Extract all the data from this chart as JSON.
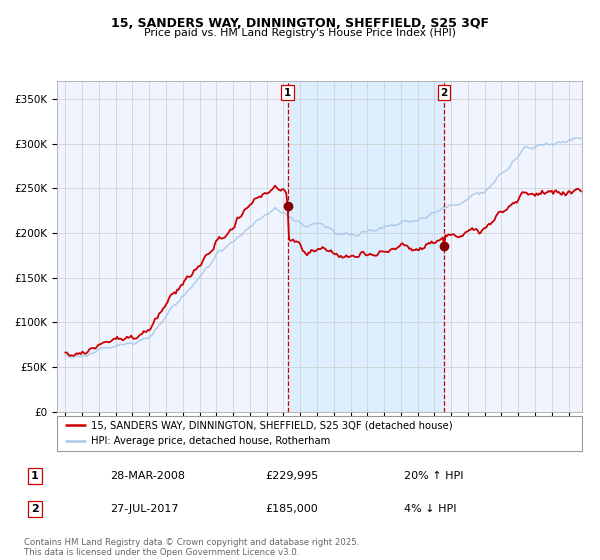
{
  "title1": "15, SANDERS WAY, DINNINGTON, SHEFFIELD, S25 3QF",
  "title2": "Price paid vs. HM Land Registry's House Price Index (HPI)",
  "legend_line1": "15, SANDERS WAY, DINNINGTON, SHEFFIELD, S25 3QF (detached house)",
  "legend_line2": "HPI: Average price, detached house, Rotherham",
  "sale1_date": "28-MAR-2008",
  "sale1_price": 229995,
  "sale1_hpi": "20% ↑ HPI",
  "sale2_date": "27-JUL-2017",
  "sale2_price": 185000,
  "sale2_hpi": "4% ↓ HPI",
  "footer": "Contains HM Land Registry data © Crown copyright and database right 2025.\nThis data is licensed under the Open Government Licence v3.0.",
  "ylim": [
    0,
    370000
  ],
  "yticks": [
    0,
    50000,
    100000,
    150000,
    200000,
    250000,
    300000,
    350000
  ],
  "sale1_year": 2008.25,
  "sale2_year": 2017.58,
  "hpi_color": "#a8c8e8",
  "property_color": "#cc0000",
  "shade_color": "#ddeeff",
  "vline_color": "#cc0000",
  "dot_color": "#880000",
  "bg_color": "#f0f4ff",
  "grid_color": "#cccccc",
  "xstart": 1995,
  "xend": 2025
}
